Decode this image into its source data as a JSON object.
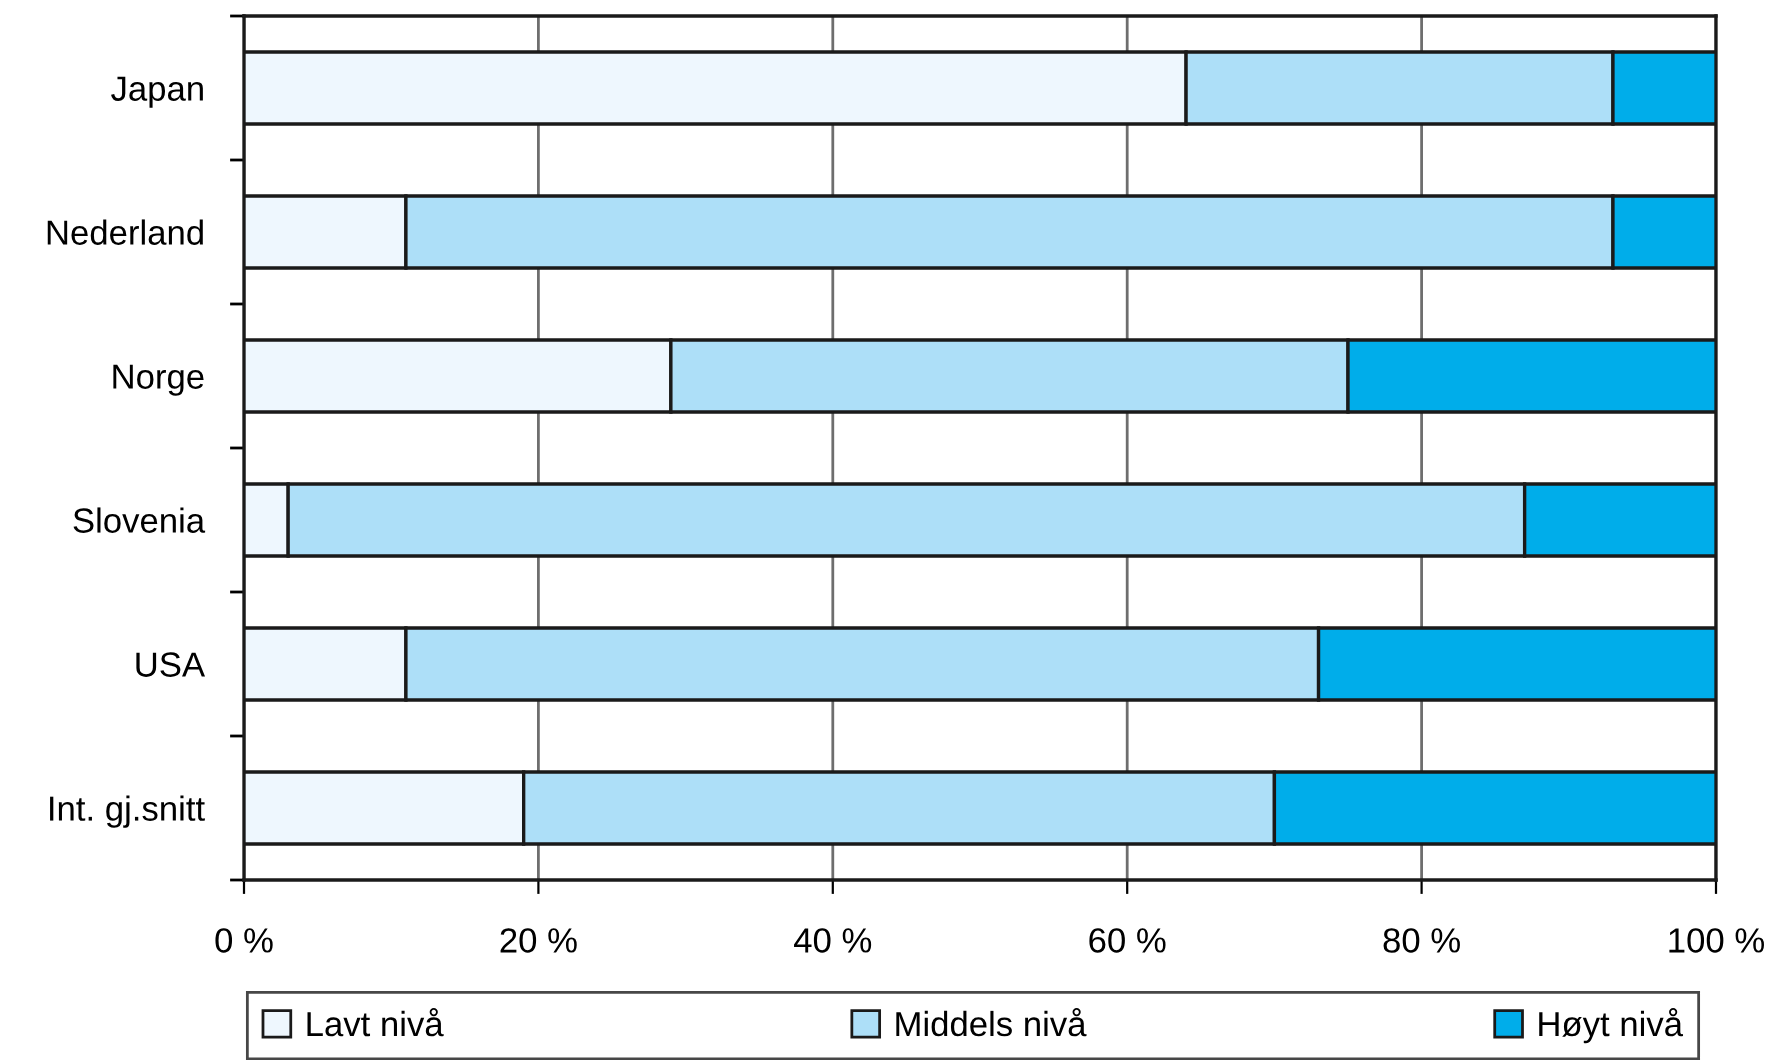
{
  "chart_data": {
    "type": "bar",
    "orientation": "horizontal",
    "stacked": true,
    "categories": [
      "Japan",
      "Nederland",
      "Norge",
      "Slovenia",
      "USA",
      "Int. gj.snitt"
    ],
    "series": [
      {
        "name": "Lavt nivå",
        "color": "#eef7fe",
        "values": [
          64,
          11,
          29,
          3,
          11,
          19
        ]
      },
      {
        "name": "Middels nivå",
        "color": "#addff8",
        "values": [
          29,
          82,
          46,
          84,
          62,
          51
        ]
      },
      {
        "name": "Høyt nivå",
        "color": "#00adea",
        "values": [
          7,
          7,
          25,
          13,
          27,
          30
        ]
      }
    ],
    "xlim": [
      0,
      100
    ],
    "xticks": [
      {
        "value": 0,
        "label": "0 %"
      },
      {
        "value": 20,
        "label": "20 %"
      },
      {
        "value": 40,
        "label": "40 %"
      },
      {
        "value": 60,
        "label": "60 %"
      },
      {
        "value": 80,
        "label": "80 %"
      },
      {
        "value": 100,
        "label": "100 %"
      }
    ],
    "grid": "x",
    "legend": "bottom"
  }
}
